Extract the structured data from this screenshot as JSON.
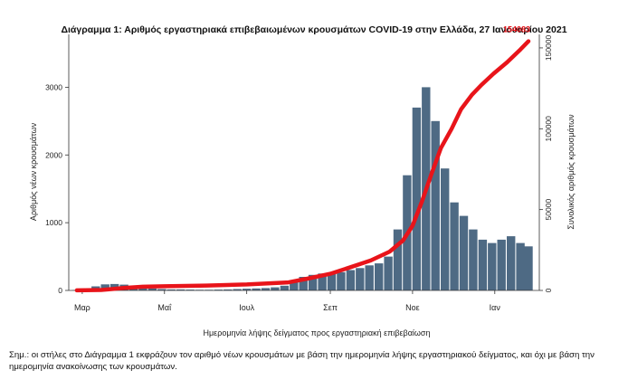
{
  "title": "Διάγραμμα 1: Αριθμός εργαστηριακά επιβεβαιωμένων κρουσμάτων COVID-19 στην Ελλάδα, 27 Ιανουαρίου 2021",
  "note": "Σημ.: οι στήλες στο Διάγραμμα 1 εκφράζουν τον αριθμό νέων κρουσμάτων με βάση την ημερομηνία λήψης εργαστηριακού δείγματος, και όχι με βάση την ημερομηνία ανακοίνωσης των κρουσμάτων.",
  "colors": {
    "bars": "#4e6a84",
    "line": "#e8141a",
    "end_label": "#e8141a"
  },
  "chart_data": {
    "type": "bar+line",
    "xlabel": "Ημερομηνία λήψης δείγματος προς εργαστηριακή επιβεβαίωση",
    "ylabel_left": "Αριθμός νέων κρουσμάτων",
    "ylabel_right": "Συνολικός αριθμός κρουσμάτων",
    "y_left_ticks": [
      0,
      1000,
      2000,
      3000
    ],
    "y_left_lim": [
      0,
      3700
    ],
    "y_right_ticks": [
      0,
      50000,
      100000,
      150000
    ],
    "y_right_lim": [
      0,
      155000
    ],
    "x_ticks": [
      "Μαρ",
      "Μαΐ",
      "Ιουλ",
      "Σεπ",
      "Νοε",
      "Ιαν"
    ],
    "end_label": "154083",
    "series": [
      {
        "name": "",
        "kind": "bar",
        "axis": "left",
        "note": "weekly-averaged approximation of daily new cases",
        "x": [
          "2020-02-26",
          "2020-03-04",
          "2020-03-11",
          "2020-03-18",
          "2020-03-25",
          "2020-04-01",
          "2020-04-08",
          "2020-04-15",
          "2020-04-22",
          "2020-04-29",
          "2020-05-06",
          "2020-05-13",
          "2020-05-20",
          "2020-05-27",
          "2020-06-03",
          "2020-06-10",
          "2020-06-17",
          "2020-06-24",
          "2020-07-01",
          "2020-07-08",
          "2020-07-15",
          "2020-07-22",
          "2020-07-29",
          "2020-08-05",
          "2020-08-12",
          "2020-08-19",
          "2020-08-26",
          "2020-09-02",
          "2020-09-09",
          "2020-09-16",
          "2020-09-23",
          "2020-09-30",
          "2020-10-07",
          "2020-10-14",
          "2020-10-21",
          "2020-10-28",
          "2020-11-04",
          "2020-11-11",
          "2020-11-18",
          "2020-11-25",
          "2020-12-02",
          "2020-12-09",
          "2020-12-16",
          "2020-12-23",
          "2020-12-30",
          "2021-01-06",
          "2021-01-13",
          "2021-01-20",
          "2021-01-26"
        ],
        "values": [
          5,
          20,
          60,
          90,
          95,
          85,
          70,
          50,
          30,
          20,
          15,
          15,
          12,
          10,
          10,
          12,
          15,
          20,
          25,
          30,
          35,
          45,
          70,
          150,
          200,
          230,
          250,
          250,
          270,
          300,
          330,
          370,
          400,
          500,
          900,
          1700,
          2700,
          3000,
          2500,
          1800,
          1300,
          1100,
          900,
          750,
          700,
          750,
          800,
          700,
          650
        ]
      },
      {
        "name": "",
        "kind": "line",
        "axis": "right",
        "x": [
          "2020-02-26",
          "2020-03-15",
          "2020-04-01",
          "2020-04-15",
          "2020-05-01",
          "2020-06-01",
          "2020-07-01",
          "2020-08-01",
          "2020-08-15",
          "2020-09-01",
          "2020-09-15",
          "2020-10-01",
          "2020-10-15",
          "2020-10-25",
          "2020-11-01",
          "2020-11-08",
          "2020-11-15",
          "2020-11-22",
          "2020-11-30",
          "2020-12-07",
          "2020-12-15",
          "2020-12-22",
          "2020-12-31",
          "2021-01-10",
          "2021-01-20",
          "2021-01-26"
        ],
        "values": [
          30,
          300,
          1500,
          2300,
          2600,
          3000,
          3700,
          5000,
          7300,
          10300,
          14100,
          18500,
          24000,
          31000,
          40000,
          55000,
          72000,
          88000,
          100000,
          112000,
          121000,
          127000,
          134000,
          141000,
          149000,
          154083
        ]
      }
    ]
  }
}
